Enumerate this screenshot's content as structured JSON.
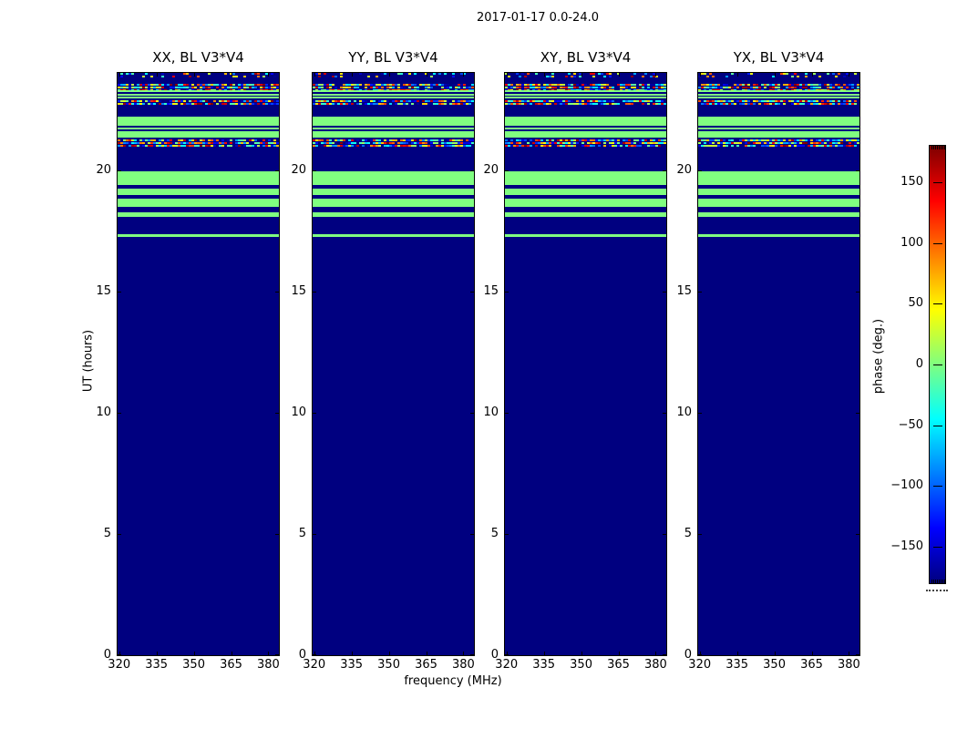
{
  "figure": {
    "suptitle": "2017-01-17 0.0-24.0",
    "background": "#ffffff"
  },
  "colors": {
    "navy": "#000080",
    "green": "#80ff80",
    "axis": "#000000"
  },
  "chart_data": {
    "type": "heatmap",
    "title": "2017-01-17 0.0-24.0",
    "xlabel": "frequency (MHz)",
    "ylabel": "UT (hours)",
    "panels": [
      {
        "title": "XX, BL V3*V4"
      },
      {
        "title": "YY, BL V3*V4"
      },
      {
        "title": "XY, BL V3*V4"
      },
      {
        "title": "YX, BL V3*V4"
      }
    ],
    "x_ticks": [
      320,
      335,
      350,
      365,
      380
    ],
    "x_range": [
      319.0,
      384.6
    ],
    "y_ticks": [
      0,
      5,
      10,
      15,
      20
    ],
    "y_range": [
      0,
      24
    ],
    "colormap": "jet",
    "value_range_deg": [
      -180,
      180
    ],
    "colorbar": {
      "label": "phase (deg.)",
      "ticks": [
        150,
        100,
        50,
        0,
        -50,
        -100,
        -150
      ]
    },
    "value_semantics": {
      "dark_background_phase_deg": -180,
      "green_band_phase_deg": 0,
      "noise_rows": "random phase across full -180..180 range"
    },
    "bands": [
      [
        24.0,
        23.8,
        "noise_sparse"
      ],
      [
        23.8,
        23.55,
        "dark"
      ],
      [
        23.55,
        23.28,
        "noise"
      ],
      [
        23.28,
        23.04,
        "stripes"
      ],
      [
        23.04,
        22.94,
        "green"
      ],
      [
        22.94,
        22.89,
        "dark"
      ],
      [
        22.89,
        22.69,
        "noise"
      ],
      [
        22.69,
        22.19,
        "dark"
      ],
      [
        22.19,
        21.88,
        "green"
      ],
      [
        21.88,
        21.55,
        "stripes"
      ],
      [
        21.55,
        21.35,
        "green"
      ],
      [
        21.35,
        21.25,
        "dark"
      ],
      [
        21.25,
        20.95,
        "noise"
      ],
      [
        20.95,
        19.93,
        "dark"
      ],
      [
        19.93,
        19.37,
        "green"
      ],
      [
        19.37,
        19.23,
        "dark"
      ],
      [
        19.23,
        18.98,
        "green"
      ],
      [
        18.98,
        18.8,
        "dark"
      ],
      [
        18.8,
        18.49,
        "green"
      ],
      [
        18.49,
        18.24,
        "dark"
      ],
      [
        18.24,
        18.05,
        "green"
      ],
      [
        18.05,
        17.36,
        "dark"
      ],
      [
        17.36,
        17.24,
        "green"
      ],
      [
        17.24,
        0.0,
        "dark"
      ]
    ]
  }
}
